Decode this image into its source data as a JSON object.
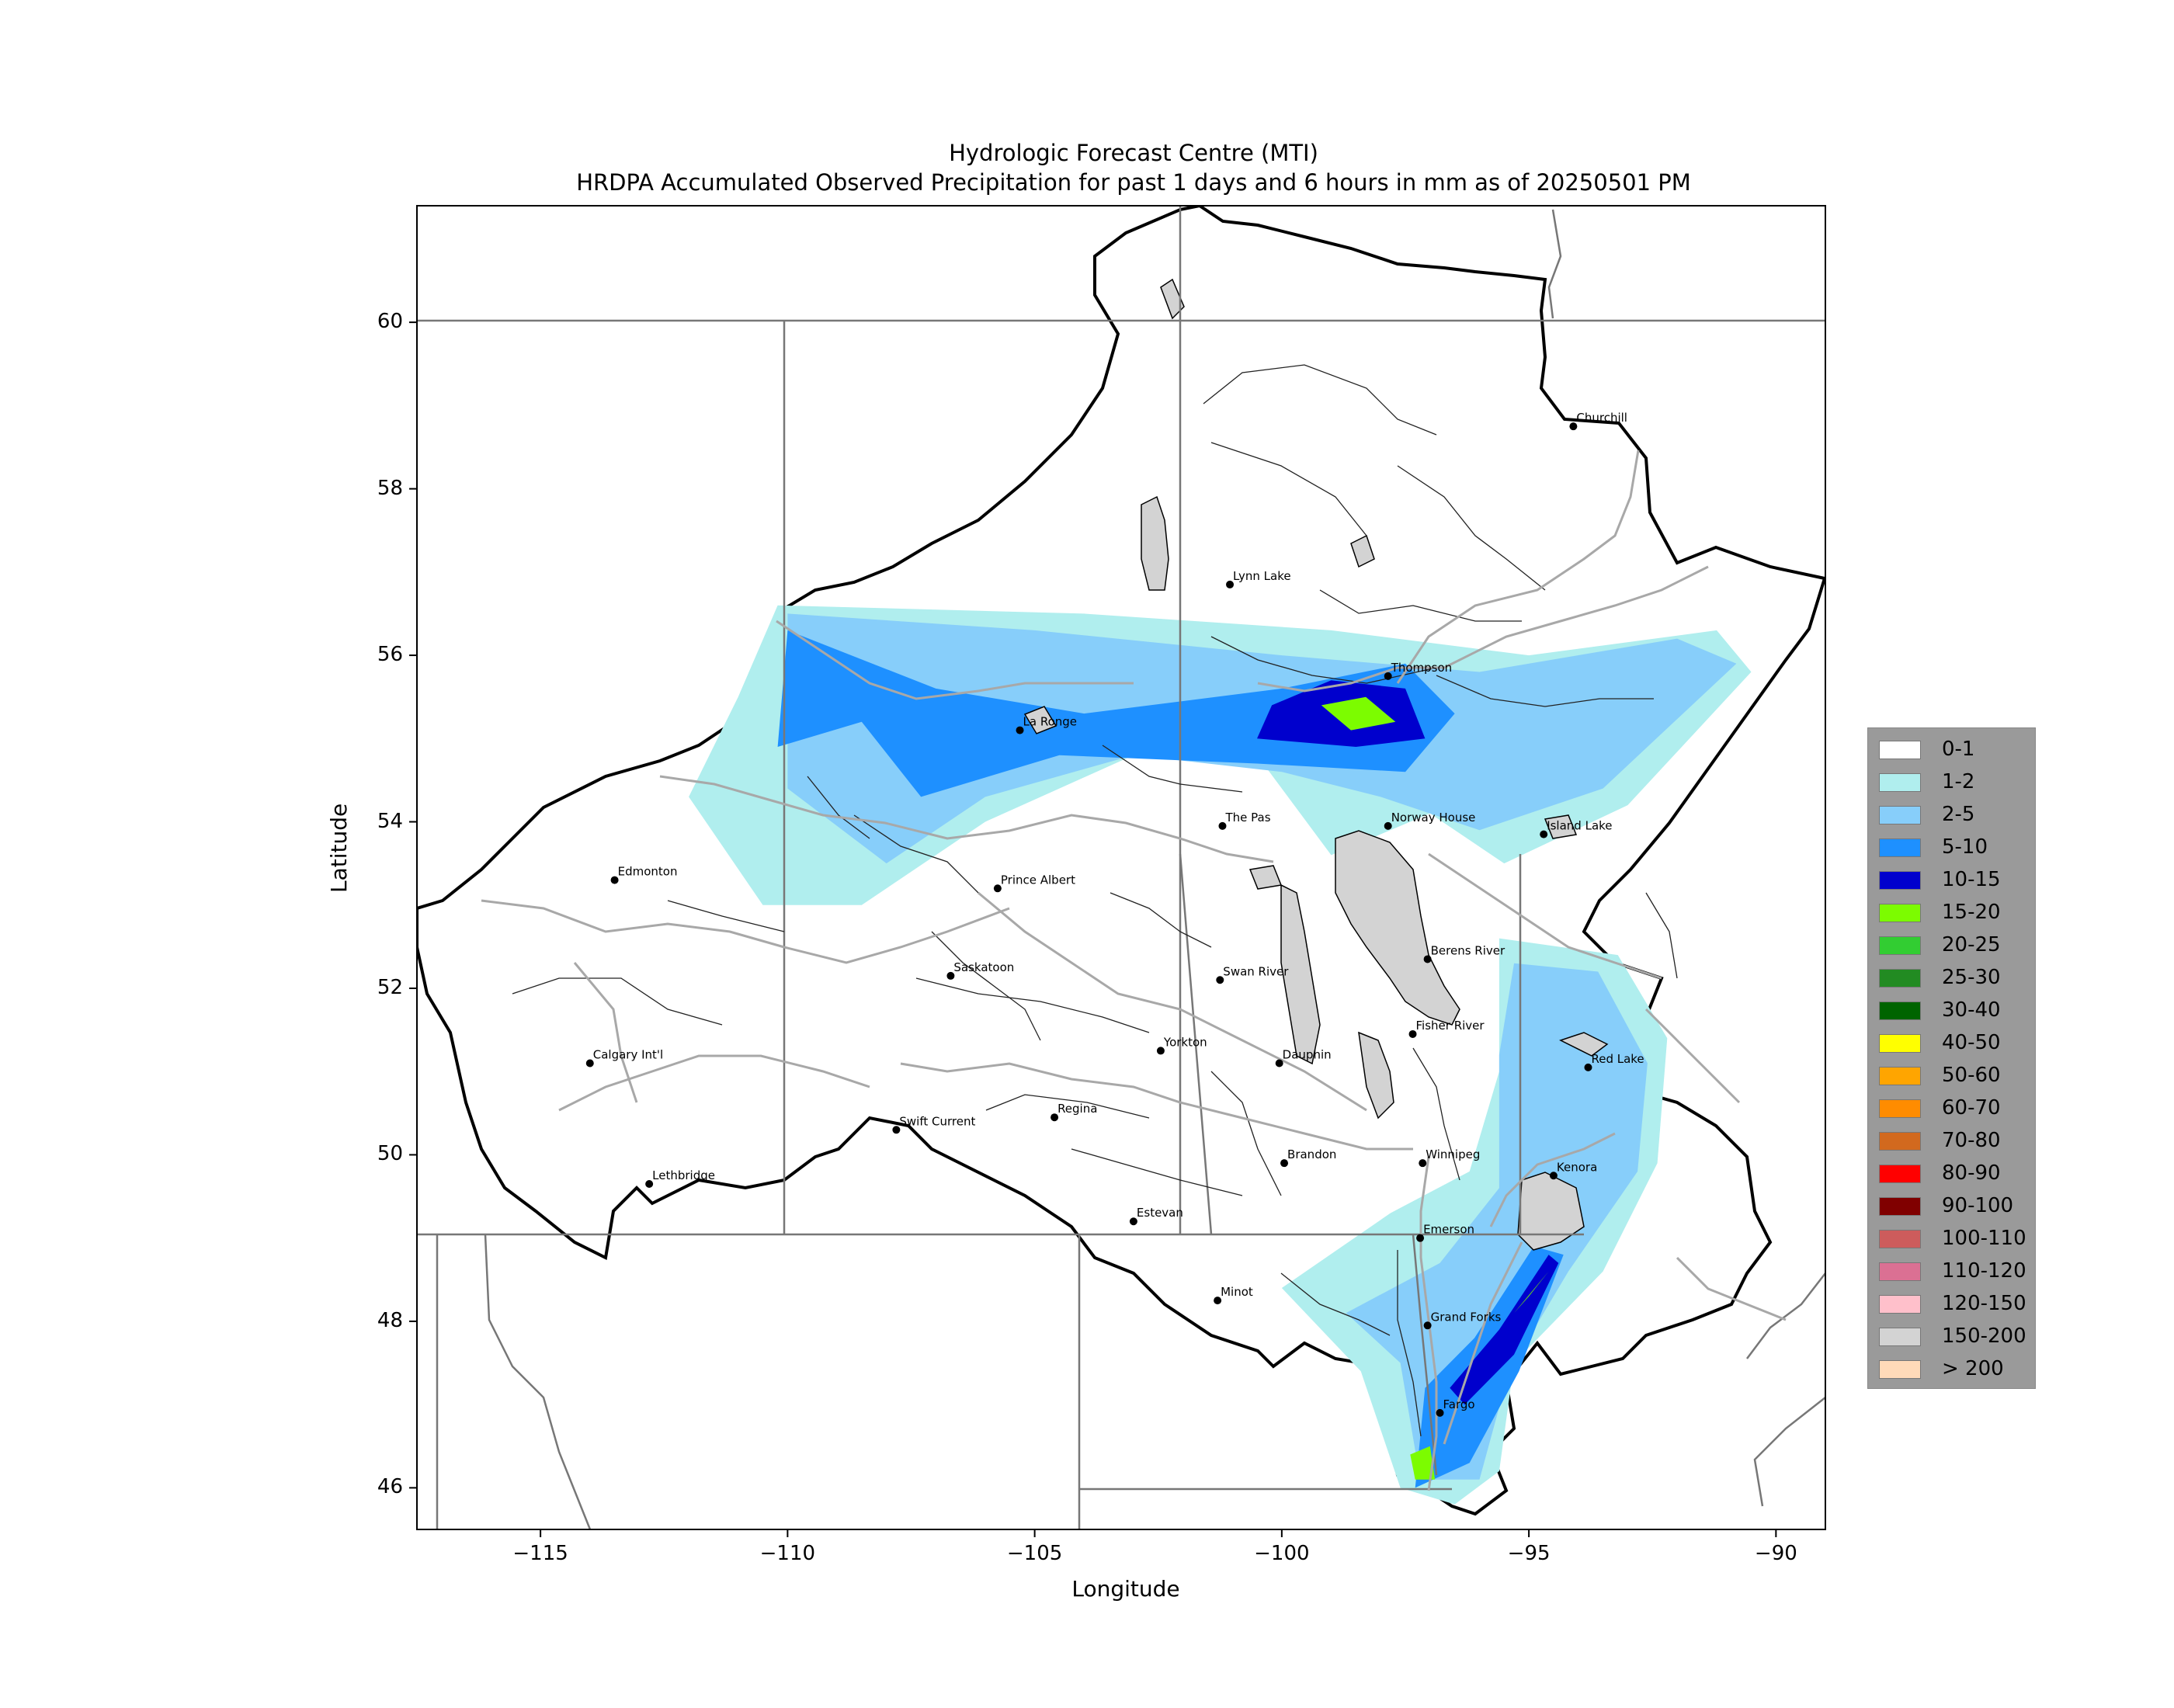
{
  "title": {
    "line1": "Hydrologic Forecast Centre (MTI)",
    "line2": "HRDPA Accumulated Observed Precipitation for past 1 days and 6 hours in mm as of 20250501 PM"
  },
  "axes": {
    "xlabel": "Longitude",
    "ylabel": "Latitude",
    "xticks": [
      "−115",
      "−110",
      "−105",
      "−100",
      "−95",
      "−90"
    ],
    "yticks": [
      "60",
      "58",
      "56",
      "54",
      "52",
      "50",
      "48",
      "46"
    ]
  },
  "chart_data": {
    "type": "heatmap",
    "title": "Hydrologic Forecast Centre (MTI) — HRDPA Accumulated Observed Precipitation for past 1 days and 6 hours in mm as of 20250501 PM",
    "xlabel": "Longitude",
    "ylabel": "Latitude",
    "xlim": [
      -117.5,
      -89
    ],
    "ylim": [
      45.5,
      61.4
    ],
    "xticks": [
      -115,
      -110,
      -105,
      -100,
      -95,
      -90
    ],
    "yticks": [
      46,
      48,
      50,
      52,
      54,
      56,
      58,
      60
    ],
    "legend_placement": "right",
    "legend": [
      {
        "label": "0-1",
        "color": "#ffffff"
      },
      {
        "label": "1-2",
        "color": "#b0eeee"
      },
      {
        "label": "2-5",
        "color": "#87cefa"
      },
      {
        "label": "5-10",
        "color": "#1e90ff"
      },
      {
        "label": "10-15",
        "color": "#0000cd"
      },
      {
        "label": "15-20",
        "color": "#7cfc00"
      },
      {
        "label": "20-25",
        "color": "#32cd32"
      },
      {
        "label": "25-30",
        "color": "#228b22"
      },
      {
        "label": "30-40",
        "color": "#006400"
      },
      {
        "label": "40-50",
        "color": "#ffff00"
      },
      {
        "label": "50-60",
        "color": "#ffa500"
      },
      {
        "label": "60-70",
        "color": "#ff8c00"
      },
      {
        "label": "70-80",
        "color": "#d2691e"
      },
      {
        "label": "80-90",
        "color": "#ff0000"
      },
      {
        "label": "90-100",
        "color": "#800000"
      },
      {
        "label": "100-110",
        "color": "#cd5c5c"
      },
      {
        "label": "110-120",
        "color": "#db7093"
      },
      {
        "label": "120-150",
        "color": "#ffc0cb"
      },
      {
        "label": "150-200",
        "color": "#d3d3d3"
      },
      {
        "label": "> 200",
        "color": "#ffdab9"
      }
    ],
    "cities": [
      {
        "name": "Churchill",
        "lon": -94.1,
        "lat": 58.75
      },
      {
        "name": "Lynn Lake",
        "lon": -101.05,
        "lat": 56.85
      },
      {
        "name": "Thompson",
        "lon": -97.85,
        "lat": 55.75
      },
      {
        "name": "La Ronge",
        "lon": -105.3,
        "lat": 55.1
      },
      {
        "name": "The Pas",
        "lon": -101.2,
        "lat": 53.95
      },
      {
        "name": "Norway House",
        "lon": -97.85,
        "lat": 53.95
      },
      {
        "name": "Island Lake",
        "lon": -94.7,
        "lat": 53.85
      },
      {
        "name": "Edmonton",
        "lon": -113.5,
        "lat": 53.3
      },
      {
        "name": "Prince Albert",
        "lon": -105.75,
        "lat": 53.2
      },
      {
        "name": "Berens River",
        "lon": -97.05,
        "lat": 52.35
      },
      {
        "name": "Saskatoon",
        "lon": -106.7,
        "lat": 52.15
      },
      {
        "name": "Swan River",
        "lon": -101.25,
        "lat": 52.1
      },
      {
        "name": "Fisher River",
        "lon": -97.35,
        "lat": 51.45
      },
      {
        "name": "Yorkton",
        "lon": -102.45,
        "lat": 51.25
      },
      {
        "name": "Red Lake",
        "lon": -93.8,
        "lat": 51.05
      },
      {
        "name": "Dauphin",
        "lon": -100.05,
        "lat": 51.1
      },
      {
        "name": "Calgary Int'l",
        "lon": -114.0,
        "lat": 51.1
      },
      {
        "name": "Regina",
        "lon": -104.6,
        "lat": 50.45
      },
      {
        "name": "Swift Current",
        "lon": -107.8,
        "lat": 50.3
      },
      {
        "name": "Brandon",
        "lon": -99.95,
        "lat": 49.9
      },
      {
        "name": "Winnipeg",
        "lon": -97.15,
        "lat": 49.9
      },
      {
        "name": "Kenora",
        "lon": -94.5,
        "lat": 49.75
      },
      {
        "name": "Lethbridge",
        "lon": -112.8,
        "lat": 49.65
      },
      {
        "name": "Estevan",
        "lon": -103.0,
        "lat": 49.2
      },
      {
        "name": "Emerson",
        "lon": -97.2,
        "lat": 49.0
      },
      {
        "name": "Minot",
        "lon": -101.3,
        "lat": 48.25
      },
      {
        "name": "Grand Forks",
        "lon": -97.05,
        "lat": 47.95
      },
      {
        "name": "Fargo",
        "lon": -96.8,
        "lat": 46.9
      }
    ],
    "precip_areas": [
      {
        "band": "1-2",
        "polygon": [
          [
            -110.2,
            56.6
          ],
          [
            -104,
            56.5
          ],
          [
            -99,
            56.3
          ],
          [
            -95,
            56.0
          ],
          [
            -91.2,
            56.3
          ],
          [
            -90.5,
            55.8
          ],
          [
            -93,
            54.2
          ],
          [
            -95.5,
            53.5
          ],
          [
            -97,
            54.1
          ],
          [
            -99,
            53.6
          ],
          [
            -100.5,
            54.8
          ],
          [
            -103,
            54.8
          ],
          [
            -106,
            54.0
          ],
          [
            -108.5,
            53.0
          ],
          [
            -110.5,
            53.0
          ],
          [
            -112,
            54.3
          ],
          [
            -111,
            55.5
          ]
        ]
      },
      {
        "band": "2-5",
        "polygon": [
          [
            -110,
            56.5
          ],
          [
            -105,
            56.3
          ],
          [
            -100,
            56.0
          ],
          [
            -96,
            55.8
          ],
          [
            -92,
            56.2
          ],
          [
            -90.8,
            55.9
          ],
          [
            -93.5,
            54.4
          ],
          [
            -96,
            53.9
          ],
          [
            -98,
            54.3
          ],
          [
            -100,
            54.6
          ],
          [
            -103,
            54.8
          ],
          [
            -106,
            54.3
          ],
          [
            -108,
            53.5
          ],
          [
            -110,
            54.4
          ]
        ]
      },
      {
        "band": "5-10",
        "polygon": [
          [
            -110,
            56.3
          ],
          [
            -107,
            55.6
          ],
          [
            -104,
            55.3
          ],
          [
            -100,
            55.6
          ],
          [
            -97.5,
            55.9
          ],
          [
            -96.5,
            55.3
          ],
          [
            -97.5,
            54.6
          ],
          [
            -100.5,
            54.7
          ],
          [
            -104.5,
            54.8
          ],
          [
            -107.3,
            54.3
          ],
          [
            -108.5,
            55.2
          ],
          [
            -110.2,
            54.9
          ]
        ]
      },
      {
        "band": "10-15",
        "polygon": [
          [
            -100.2,
            55.4
          ],
          [
            -99,
            55.7
          ],
          [
            -97.5,
            55.6
          ],
          [
            -97.1,
            55.0
          ],
          [
            -98.5,
            54.9
          ],
          [
            -100.5,
            55.0
          ]
        ]
      },
      {
        "band": "15-20",
        "polygon": [
          [
            -99.2,
            55.4
          ],
          [
            -98.3,
            55.5
          ],
          [
            -97.7,
            55.2
          ],
          [
            -98.6,
            55.1
          ]
        ]
      },
      {
        "band": "1-2",
        "polygon": [
          [
            -95.6,
            52.6
          ],
          [
            -93.2,
            52.4
          ],
          [
            -92.2,
            51.4
          ],
          [
            -92.4,
            49.9
          ],
          [
            -93.5,
            48.6
          ],
          [
            -95.3,
            47.5
          ],
          [
            -95.6,
            46.2
          ],
          [
            -96.5,
            45.8
          ],
          [
            -97.6,
            46.0
          ],
          [
            -98.4,
            47.4
          ],
          [
            -100,
            48.4
          ],
          [
            -97.8,
            49.3
          ],
          [
            -96.2,
            49.8
          ],
          [
            -95.6,
            51.0
          ]
        ]
      },
      {
        "band": "2-5",
        "polygon": [
          [
            -95.3,
            52.3
          ],
          [
            -93.6,
            52.2
          ],
          [
            -92.6,
            51.1
          ],
          [
            -92.8,
            49.8
          ],
          [
            -94.2,
            48.6
          ],
          [
            -95.4,
            47.4
          ],
          [
            -96.0,
            46.1
          ],
          [
            -97.2,
            46.1
          ],
          [
            -97.6,
            47.5
          ],
          [
            -98.7,
            48.1
          ],
          [
            -96.8,
            48.7
          ],
          [
            -95.6,
            49.6
          ],
          [
            -95.6,
            51.2
          ]
        ]
      },
      {
        "band": "5-10",
        "polygon": [
          [
            -94.3,
            48.8
          ],
          [
            -95.2,
            47.4
          ],
          [
            -96.2,
            46.3
          ],
          [
            -97.3,
            46.0
          ],
          [
            -97.1,
            47.2
          ],
          [
            -96.1,
            47.8
          ],
          [
            -94.9,
            48.9
          ]
        ]
      },
      {
        "band": "10-15",
        "polygon": [
          [
            -94.4,
            48.7
          ],
          [
            -95.3,
            47.6
          ],
          [
            -96.3,
            47.0
          ],
          [
            -96.6,
            47.2
          ],
          [
            -95.6,
            47.9
          ],
          [
            -94.6,
            48.8
          ]
        ]
      },
      {
        "band": "15-20",
        "polygon": [
          [
            -94.6,
            48.6
          ],
          [
            -95.3,
            48.1
          ],
          [
            -95.0,
            48.3
          ]
        ]
      },
      {
        "band": "15-20",
        "polygon": [
          [
            -97.3,
            46.1
          ],
          [
            -96.9,
            46.1
          ],
          [
            -97.0,
            46.5
          ],
          [
            -97.4,
            46.4
          ]
        ]
      }
    ]
  }
}
